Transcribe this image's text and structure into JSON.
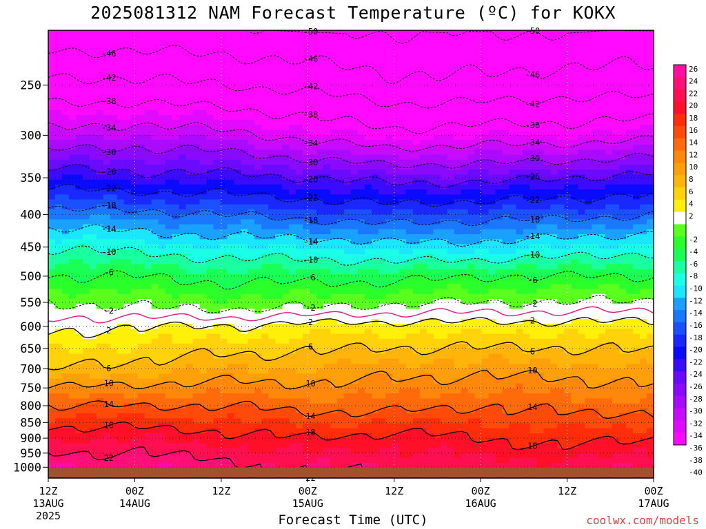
{
  "title": "2025081312 NAM Forecast Temperature (ºC) for KOKX",
  "xlabel": "Forecast Time (UTC)",
  "credit": "coolwx.com/models",
  "chart_data": {
    "type": "heatmap",
    "title": "2025081312 NAM Forecast Temperature (ºC) for KOKX",
    "xlabel": "Forecast Time (UTC)",
    "ylabel": "",
    "y_scale": "log-pressure",
    "ylim": [
      1000,
      200
    ],
    "y_ticks": [
      250,
      300,
      350,
      400,
      450,
      500,
      550,
      600,
      650,
      700,
      750,
      800,
      850,
      900,
      950,
      1000
    ],
    "x_ticks": [
      {
        "h": 0,
        "line1": "12Z",
        "line2": "13AUG",
        "line3": "2025"
      },
      {
        "h": 12,
        "line1": "00Z",
        "line2": "14AUG",
        "line3": ""
      },
      {
        "h": 24,
        "line1": "12Z",
        "line2": "",
        "line3": ""
      },
      {
        "h": 36,
        "line1": "00Z",
        "line2": "15AUG",
        "line3": ""
      },
      {
        "h": 48,
        "line1": "12Z",
        "line2": "",
        "line3": ""
      },
      {
        "h": 60,
        "line1": "00Z",
        "line2": "16AUG",
        "line3": ""
      },
      {
        "h": 72,
        "line1": "12Z",
        "line2": "",
        "line3": ""
      },
      {
        "h": 84,
        "line1": "00Z",
        "line2": "17AUG",
        "line3": ""
      }
    ],
    "colorbar": {
      "ticks": [
        26,
        24,
        22,
        20,
        18,
        16,
        14,
        12,
        10,
        8,
        6,
        4,
        2,
        -2,
        -4,
        -6,
        -8,
        -10,
        -12,
        -14,
        -16,
        -18,
        -20,
        -22,
        -24,
        -26,
        -28,
        -30,
        -32,
        -34,
        -36,
        -38,
        -40
      ],
      "colors": [
        "#ff0ea0",
        "#ff0f78",
        "#ff0f50",
        "#ff0f28",
        "#ff2d0a",
        "#ff4a0a",
        "#ff6a0a",
        "#ff870a",
        "#ffa00a",
        "#ffb40a",
        "#ffd20a",
        "#fff00a",
        "#ffffff",
        "#5aff1e",
        "#2aff2a",
        "#1aff56",
        "#1affa0",
        "#1affe6",
        "#1ae6ff",
        "#1aa0ff",
        "#1a78ff",
        "#1a50ff",
        "#1a28ff",
        "#0a0aff",
        "#3c0aff",
        "#6a0aff",
        "#8a0aff",
        "#aa0aff",
        "#c80aff",
        "#e10aff",
        "#ff0aff"
      ]
    },
    "contour_labels": [
      "-50",
      "-46",
      "-42",
      "-38",
      "-34",
      "-30",
      "-26",
      "-22",
      "-18",
      "-14",
      "-10",
      "-6",
      "-2",
      "2",
      "6",
      "10",
      "14",
      "18",
      "22"
    ],
    "profiles": [
      {
        "h": 0,
        "t1000": 24.0,
        "lapse": [
          [
            1000,
            24
          ],
          [
            900,
            20
          ],
          [
            800,
            14
          ],
          [
            700,
            6
          ],
          [
            600,
            1
          ],
          [
            550,
            -2
          ],
          [
            500,
            -6
          ],
          [
            450,
            -10
          ],
          [
            400,
            -17
          ],
          [
            350,
            -24
          ],
          [
            300,
            -33
          ],
          [
            250,
            -41
          ],
          [
            200,
            -50
          ]
        ]
      },
      {
        "h": 12,
        "t1000": 23.5,
        "lapse": [
          [
            1000,
            24
          ],
          [
            900,
            20
          ],
          [
            800,
            14
          ],
          [
            700,
            7
          ],
          [
            600,
            2
          ],
          [
            560,
            -2
          ],
          [
            500,
            -6
          ],
          [
            450,
            -11
          ],
          [
            400,
            -17
          ],
          [
            350,
            -25
          ],
          [
            300,
            -32
          ],
          [
            250,
            -41
          ],
          [
            200,
            -50
          ]
        ]
      },
      {
        "h": 24,
        "t1000": 23.0,
        "lapse": [
          [
            1000,
            23
          ],
          [
            900,
            19
          ],
          [
            800,
            14
          ],
          [
            700,
            8
          ],
          [
            600,
            2
          ],
          [
            565,
            -2
          ],
          [
            500,
            -7
          ],
          [
            450,
            -12
          ],
          [
            400,
            -18
          ],
          [
            350,
            -25
          ],
          [
            300,
            -33
          ],
          [
            250,
            -42
          ],
          [
            200,
            -50
          ]
        ]
      },
      {
        "h": 36,
        "t1000": 22.0,
        "lapse": [
          [
            1000,
            22
          ],
          [
            900,
            18
          ],
          [
            800,
            13
          ],
          [
            700,
            8
          ],
          [
            600,
            3
          ],
          [
            560,
            -2
          ],
          [
            500,
            -7
          ],
          [
            450,
            -12
          ],
          [
            400,
            -19
          ],
          [
            350,
            -26
          ],
          [
            300,
            -35
          ],
          [
            250,
            -43
          ],
          [
            200,
            -51
          ]
        ]
      },
      {
        "h": 48,
        "t1000": 22.0,
        "lapse": [
          [
            1000,
            22
          ],
          [
            900,
            19
          ],
          [
            800,
            13
          ],
          [
            700,
            9
          ],
          [
            600,
            3
          ],
          [
            555,
            -2
          ],
          [
            500,
            -7
          ],
          [
            450,
            -13
          ],
          [
            400,
            -20
          ],
          [
            350,
            -27
          ],
          [
            300,
            -37
          ],
          [
            250,
            -45
          ],
          [
            200,
            -51
          ]
        ]
      },
      {
        "h": 60,
        "t1000": 21.0,
        "lapse": [
          [
            1000,
            21
          ],
          [
            900,
            18
          ],
          [
            800,
            14
          ],
          [
            700,
            9
          ],
          [
            600,
            3
          ],
          [
            550,
            -2
          ],
          [
            500,
            -6
          ],
          [
            450,
            -13
          ],
          [
            400,
            -19
          ],
          [
            350,
            -27
          ],
          [
            300,
            -36
          ],
          [
            250,
            -45
          ],
          [
            200,
            -51
          ]
        ]
      },
      {
        "h": 72,
        "t1000": 21.0,
        "lapse": [
          [
            1000,
            21
          ],
          [
            900,
            17
          ],
          [
            800,
            13
          ],
          [
            700,
            9
          ],
          [
            600,
            3
          ],
          [
            550,
            -2
          ],
          [
            500,
            -6
          ],
          [
            450,
            -12
          ],
          [
            400,
            -19
          ],
          [
            350,
            -26
          ],
          [
            300,
            -36
          ],
          [
            250,
            -44
          ],
          [
            200,
            -51
          ]
        ]
      },
      {
        "h": 84,
        "t1000": 22.0,
        "lapse": [
          [
            1000,
            22
          ],
          [
            900,
            18
          ],
          [
            800,
            13
          ],
          [
            700,
            8
          ],
          [
            600,
            3
          ],
          [
            545,
            -2
          ],
          [
            500,
            -6
          ],
          [
            450,
            -11
          ],
          [
            400,
            -18
          ],
          [
            350,
            -25
          ],
          [
            300,
            -35
          ],
          [
            250,
            -44
          ],
          [
            200,
            -50
          ]
        ]
      }
    ]
  }
}
